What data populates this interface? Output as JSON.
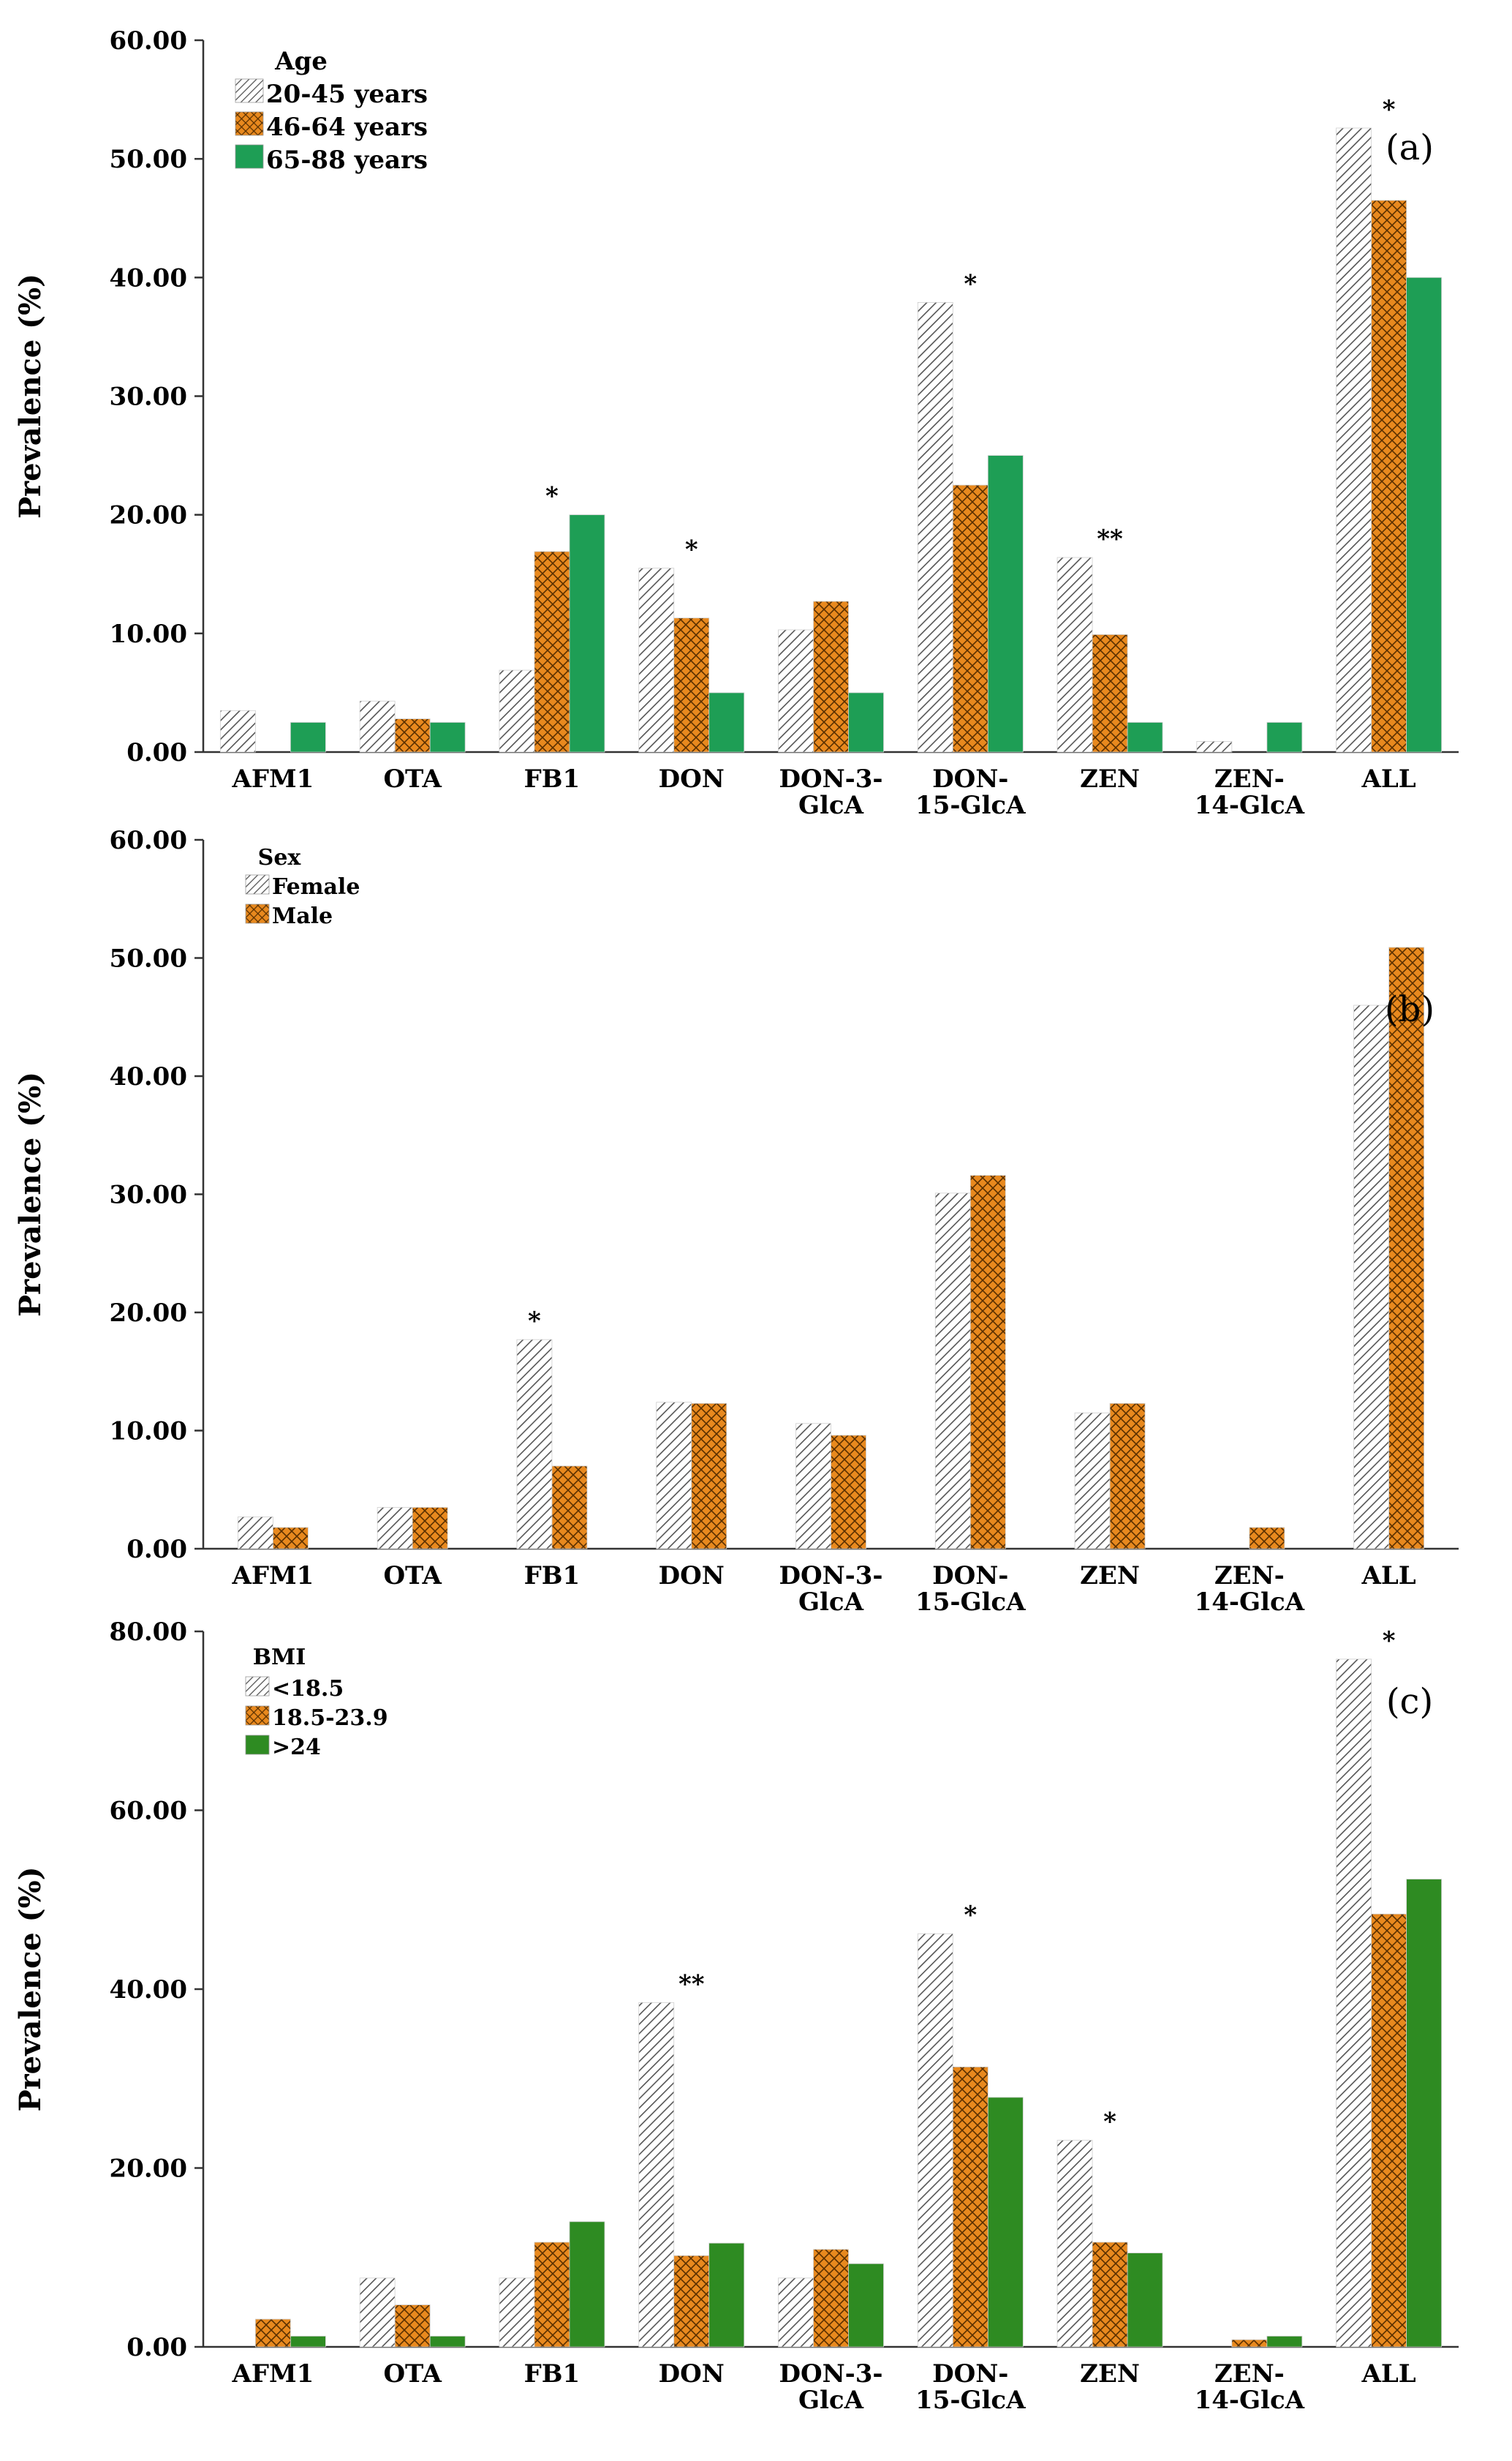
{
  "patterns": {
    "hatch": "diagonal-stripes",
    "cross": "crosshatch",
    "solid": "solid"
  },
  "colors": {
    "hatch_stroke": "#555555",
    "orange": "#E8891E",
    "green_a": "#1E9E55",
    "green_c": "#2E8B22",
    "axis": "#333333"
  },
  "chart_data": [
    {
      "type": "bar",
      "panel_label": "(a)",
      "ylabel": "Prevalence (%)",
      "ylim": [
        0,
        60
      ],
      "yticks": [
        "0.00",
        "10.00",
        "20.00",
        "30.00",
        "40.00",
        "50.00",
        "60.00"
      ],
      "categories": [
        "AFM1",
        "OTA",
        "FB1",
        "DON",
        "DON-3-GlcA",
        "DON-15-GlcA",
        "ZEN",
        "ZEN-14-GlcA",
        "ALL"
      ],
      "category_lines": [
        [
          "AFM1"
        ],
        [
          "OTA"
        ],
        [
          "FB1"
        ],
        [
          "DON"
        ],
        [
          "DON-3-",
          "GlcA"
        ],
        [
          "DON-",
          "15-GlcA"
        ],
        [
          "ZEN"
        ],
        [
          "ZEN-",
          "14-GlcA"
        ],
        [
          "ALL"
        ]
      ],
      "legend_title": "Age",
      "legend_position": "top-left",
      "series": [
        {
          "name": "20-45 years",
          "pattern": "hatch",
          "color": "#555555",
          "values": [
            3.5,
            4.3,
            6.9,
            15.5,
            10.3,
            37.9,
            16.4,
            0.9,
            52.6
          ]
        },
        {
          "name": "46-64 years",
          "pattern": "cross",
          "color": "#E8891E",
          "values": [
            0.0,
            2.8,
            16.9,
            11.3,
            12.7,
            22.5,
            9.9,
            0.0,
            46.5
          ]
        },
        {
          "name": "65-88 years",
          "pattern": "solid",
          "color": "#1E9E55",
          "values": [
            2.5,
            2.5,
            20.0,
            5.0,
            5.0,
            25.0,
            2.5,
            2.5,
            40.0
          ]
        }
      ],
      "significance": [
        {
          "category": "FB1",
          "series": 1,
          "label": "*"
        },
        {
          "category": "DON",
          "series": 1,
          "label": "*"
        },
        {
          "category": "DON-15-GlcA",
          "series": 1,
          "label": "*"
        },
        {
          "category": "ZEN",
          "series": 1,
          "label": "**"
        },
        {
          "category": "ALL",
          "series": 1,
          "label": "*"
        }
      ]
    },
    {
      "type": "bar",
      "panel_label": "(b)",
      "ylabel": "Prevalence (%)",
      "ylim": [
        0,
        60
      ],
      "yticks": [
        "0.00",
        "10.00",
        "20.00",
        "30.00",
        "40.00",
        "50.00",
        "60.00"
      ],
      "categories": [
        "AFM1",
        "OTA",
        "FB1",
        "DON",
        "DON-3-GlcA",
        "DON-15-GlcA",
        "ZEN",
        "ZEN-14-GlcA",
        "ALL"
      ],
      "category_lines": [
        [
          "AFM1"
        ],
        [
          "OTA"
        ],
        [
          "FB1"
        ],
        [
          "DON"
        ],
        [
          "DON-3-",
          "GlcA"
        ],
        [
          "DON-",
          "15-GlcA"
        ],
        [
          "ZEN"
        ],
        [
          "ZEN-",
          "14-GlcA"
        ],
        [
          "ALL"
        ]
      ],
      "legend_title": "Sex",
      "legend_position": "top-left",
      "series": [
        {
          "name": "Female",
          "pattern": "hatch",
          "color": "#555555",
          "values": [
            2.7,
            3.5,
            17.7,
            12.4,
            10.6,
            30.1,
            11.5,
            0.0,
            46.0
          ]
        },
        {
          "name": "Male",
          "pattern": "cross",
          "color": "#E8891E",
          "values": [
            1.8,
            3.5,
            7.0,
            12.3,
            9.6,
            31.6,
            12.3,
            1.8,
            50.9
          ]
        }
      ],
      "significance": [
        {
          "category": "FB1",
          "series": 0,
          "label": "*"
        }
      ]
    },
    {
      "type": "bar",
      "panel_label": "(c)",
      "ylabel": "Prevalence (%)",
      "ylim": [
        0,
        80
      ],
      "yticks": [
        "0.00",
        "20.00",
        "40.00",
        "60.00",
        "80.00"
      ],
      "categories": [
        "AFM1",
        "OTA",
        "FB1",
        "DON",
        "DON-3-GlcA",
        "DON-15-GlcA",
        "ZEN",
        "ZEN-14-GlcA",
        "ALL"
      ],
      "category_lines": [
        [
          "AFM1"
        ],
        [
          "OTA"
        ],
        [
          "FB1"
        ],
        [
          "DON"
        ],
        [
          "DON-3-",
          "GlcA"
        ],
        [
          "DON-",
          "15-GlcA"
        ],
        [
          "ZEN"
        ],
        [
          "ZEN-",
          "14-GlcA"
        ],
        [
          "ALL"
        ]
      ],
      "legend_title": "BMI",
      "legend_position": "top-left",
      "series": [
        {
          "name": "<18.5",
          "pattern": "hatch",
          "color": "#555555",
          "values": [
            0.0,
            7.7,
            7.7,
            38.5,
            7.7,
            46.2,
            23.1,
            0.0,
            76.9
          ]
        },
        {
          "name": "18.5-23.9",
          "pattern": "cross",
          "color": "#E8891E",
          "values": [
            3.1,
            4.7,
            11.7,
            10.2,
            10.9,
            31.3,
            11.7,
            0.8,
            48.4
          ]
        },
        {
          "name": ">24",
          "pattern": "solid",
          "color": "#2E8B22",
          "values": [
            1.2,
            1.2,
            14.0,
            11.6,
            9.3,
            27.9,
            10.5,
            1.2,
            52.3
          ]
        }
      ],
      "significance": [
        {
          "category": "DON",
          "series": 1,
          "label": "**"
        },
        {
          "category": "DON-15-GlcA",
          "series": 1,
          "label": "*"
        },
        {
          "category": "ZEN",
          "series": 1,
          "label": "*"
        },
        {
          "category": "ALL",
          "series": 1,
          "label": "*"
        }
      ]
    }
  ]
}
